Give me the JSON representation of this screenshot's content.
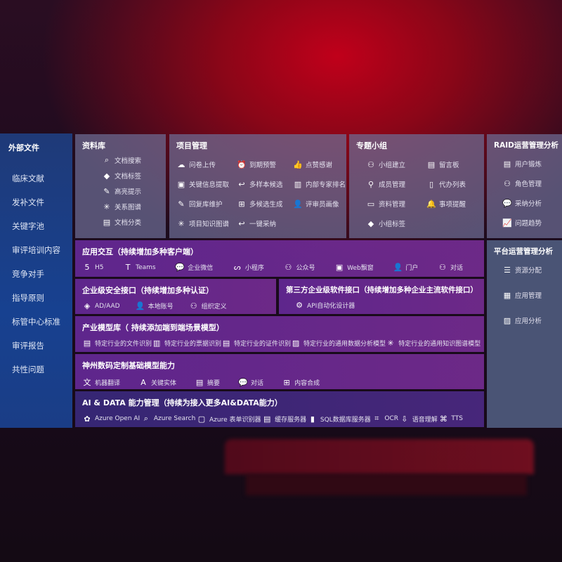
{
  "external": {
    "title": "外部文件",
    "items": [
      "临床文献",
      "发补文件",
      "关键字池",
      "审评培训内容",
      "竞争对手",
      "指导原则",
      "标管中心标准",
      "审评报告",
      "共性问题"
    ]
  },
  "library": {
    "title": "资料库",
    "items": [
      {
        "label": "文档搜索",
        "icon": "doc-search-icon"
      },
      {
        "label": "文档标签",
        "icon": "tag-icon"
      },
      {
        "label": "高亮提示",
        "icon": "pen-icon"
      },
      {
        "label": "关系图谱",
        "icon": "graph-icon"
      },
      {
        "label": "文档分类",
        "icon": "doc-class-icon"
      }
    ]
  },
  "project": {
    "title": "项目管理",
    "items": [
      {
        "label": "问卷上传",
        "icon": "cloud-upload-icon"
      },
      {
        "label": "到期预警",
        "icon": "alarm-icon"
      },
      {
        "label": "点赞感谢",
        "icon": "thumbs-up-icon"
      },
      {
        "label": "关键信息提取",
        "icon": "window-icon"
      },
      {
        "label": "多样本候选",
        "icon": "reply-icon"
      },
      {
        "label": "内部专家排名",
        "icon": "ranking-icon"
      },
      {
        "label": "回复库维护",
        "icon": "edit-icon"
      },
      {
        "label": "多候选生成",
        "icon": "puzzle-icon"
      },
      {
        "label": "评审员画像",
        "icon": "person-icon"
      },
      {
        "label": "项目知识图谱",
        "icon": "graph-icon"
      },
      {
        "label": "一键采纳",
        "icon": "reply-icon"
      }
    ]
  },
  "group": {
    "title": "专题小组",
    "items": [
      {
        "label": "小组建立",
        "icon": "group-icon"
      },
      {
        "label": "留言板",
        "icon": "bbs-icon"
      },
      {
        "label": "成员管理",
        "icon": "user-add-icon"
      },
      {
        "label": "代办列表",
        "icon": "clipboard-icon"
      },
      {
        "label": "资料管理",
        "icon": "folder-icon"
      },
      {
        "label": "事项提醒",
        "icon": "bell-icon"
      },
      {
        "label": "小组标签",
        "icon": "tag-icon"
      }
    ]
  },
  "raid": {
    "title": "RAID运营管理分析",
    "items": [
      {
        "label": "用户锻炼",
        "icon": "id-card-icon"
      },
      {
        "label": "角色管理",
        "icon": "users-icon"
      },
      {
        "label": "采纳分析",
        "icon": "qa-icon"
      },
      {
        "label": "问题趋势",
        "icon": "trend-icon"
      }
    ]
  },
  "platform": {
    "title": "平台运营管理分析",
    "items": [
      {
        "label": "资源分配",
        "icon": "list-icon"
      },
      {
        "label": "应用管理",
        "icon": "apps-icon"
      },
      {
        "label": "应用分析",
        "icon": "analysis-icon"
      }
    ]
  },
  "app": {
    "title": "应用交互（持续增加多种客户端）",
    "items": [
      {
        "label": "H5",
        "icon": "html5-icon"
      },
      {
        "label": "Teams",
        "icon": "teams-icon"
      },
      {
        "label": "企业微信",
        "icon": "wecom-icon"
      },
      {
        "label": "小程序",
        "icon": "miniprogram-icon"
      },
      {
        "label": "公众号",
        "icon": "official-account-icon"
      },
      {
        "label": "Web飘窗",
        "icon": "window-icon"
      },
      {
        "label": "门户",
        "icon": "portal-icon"
      },
      {
        "label": "对话",
        "icon": "chat-users-icon"
      }
    ]
  },
  "security": {
    "title": "企业级安全接口（持续增加多种认证）",
    "items": [
      {
        "label": "AD/AAD",
        "icon": "ad-icon"
      },
      {
        "label": "本地账号",
        "icon": "account-icon"
      },
      {
        "label": "组织定义",
        "icon": "org-icon"
      }
    ]
  },
  "third": {
    "title": "第三方企业级软件接口（持续增加多种企业主流软件接口）",
    "items": [
      {
        "label": "API自动化设计器",
        "icon": "gear-icon"
      }
    ]
  },
  "industry": {
    "title": "产业模型库（ 持续添加端到端场景模型）",
    "items": [
      {
        "label": "特定行业的文件识别",
        "icon": "file-icon"
      },
      {
        "label": "特定行业的票据识别",
        "icon": "receipt-icon"
      },
      {
        "label": "特定行业的证件识别",
        "icon": "id-card-icon"
      },
      {
        "label": "特定行业的通用数据分析模型",
        "icon": "chart-icon"
      },
      {
        "label": "特定行业的通用知识图谱模型",
        "icon": "graph-icon"
      }
    ]
  },
  "base": {
    "title": "神州数码定制基础模型能力",
    "items": [
      {
        "label": "机器翻译",
        "icon": "translate-icon"
      },
      {
        "label": "关键实体",
        "icon": "entity-icon"
      },
      {
        "label": "摘要",
        "icon": "doc-icon"
      },
      {
        "label": "对话",
        "icon": "chat-icon"
      },
      {
        "label": "内容合成",
        "icon": "puzzle-icon"
      }
    ]
  },
  "ai": {
    "title": "AI & DATA 能力管理（持续为接入更多AI&DATA能力）",
    "items": [
      {
        "label": "Azure Open AI",
        "icon": "openai-icon"
      },
      {
        "label": "Azure Search",
        "icon": "search-icon"
      },
      {
        "label": "Azure 表单识别器",
        "icon": "form-icon"
      },
      {
        "label": "缓存服务器",
        "icon": "cache-icon"
      },
      {
        "label": "SQL数据库服务器",
        "icon": "database-icon"
      },
      {
        "label": "OCR",
        "icon": "ocr-icon"
      },
      {
        "label": "语音理解",
        "icon": "speech-icon"
      },
      {
        "label": "TTS",
        "icon": "tts-icon"
      }
    ]
  }
}
